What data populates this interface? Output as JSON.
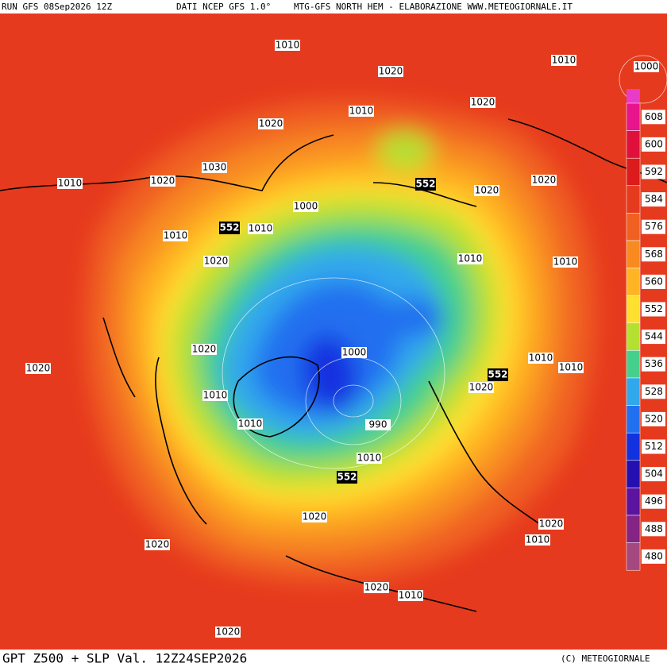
{
  "header": {
    "run": "RUN GFS 08Sep2026 12Z",
    "source": "DATI NCEP GFS 1.0°",
    "product": "MTG-GFS NORTH HEM - ELABORAZIONE WWW.METEOGIORNALE.IT"
  },
  "footer": {
    "title": "GPT Z500 + SLP Val. 12Z24SEP2026",
    "copyright": "(C) METEOGIORNALE"
  },
  "colorbar": {
    "levels": [
      608,
      600,
      592,
      584,
      576,
      568,
      560,
      552,
      544,
      536,
      528,
      520,
      512,
      504,
      496,
      488,
      480
    ],
    "colors": [
      "#e8148c",
      "#e0103c",
      "#dc1c1c",
      "#e63a1e",
      "#f06020",
      "#f88a20",
      "#ffb424",
      "#ffe030",
      "#b4e032",
      "#44d08c",
      "#30a8ec",
      "#2070f0",
      "#1232e0",
      "#2410b0",
      "#5a14a0",
      "#842484",
      "#a44880"
    ],
    "top_color": "#e83cc8"
  },
  "pressure_labels": [
    1010,
    1020,
    1010,
    1000,
    1010,
    1020,
    1020,
    1030,
    1020,
    1010,
    1020,
    1020,
    1000,
    1010,
    1010,
    1020,
    1010,
    1010,
    1020,
    1000,
    1010,
    1010,
    1020,
    1020,
    1010,
    1010,
    990,
    1010,
    1020,
    1020,
    1010,
    1020,
    1020,
    1010,
    1020
  ],
  "height_labels": [
    552,
    552,
    552,
    552
  ]
}
